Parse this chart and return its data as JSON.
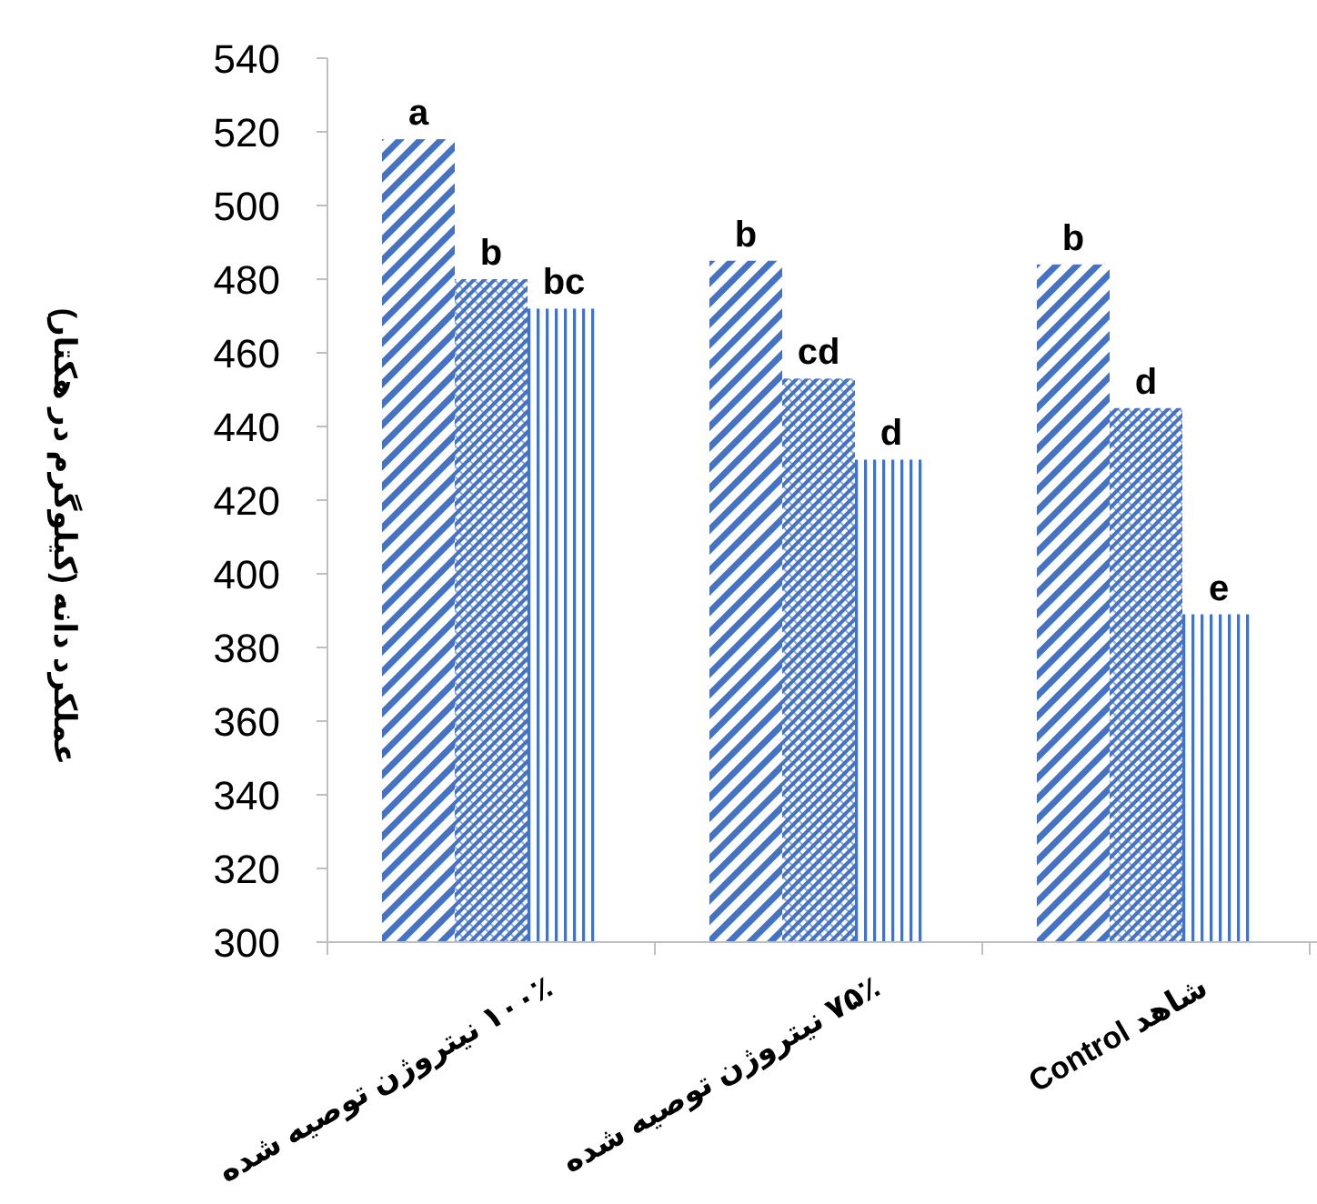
{
  "chart_data": {
    "type": "bar",
    "ylabel": "عملکرد دانه (کیلوگرم در هکتار)",
    "categories": [
      "۱۰۰٪ نیتروژن توصیه شده",
      "۷۵٪ نیتروژن توصیه شده",
      "شاهد Control"
    ],
    "series": [
      {
        "color": "#4472c4",
        "values": [
          518,
          485,
          484
        ],
        "value_labels": [
          "a",
          "b",
          "b"
        ]
      },
      {
        "color": "#4472c4",
        "values": [
          480,
          453,
          445
        ],
        "value_labels": [
          "b",
          "cd",
          "d"
        ]
      },
      {
        "color": "#4472c4",
        "values": [
          472,
          431,
          389
        ],
        "value_labels": [
          "bc",
          "d",
          "e"
        ]
      }
    ],
    "ylim": [
      300,
      540
    ],
    "yticks": [
      300,
      320,
      340,
      360,
      380,
      400,
      420,
      440,
      460,
      480,
      500,
      520,
      540
    ],
    "grid": false
  }
}
